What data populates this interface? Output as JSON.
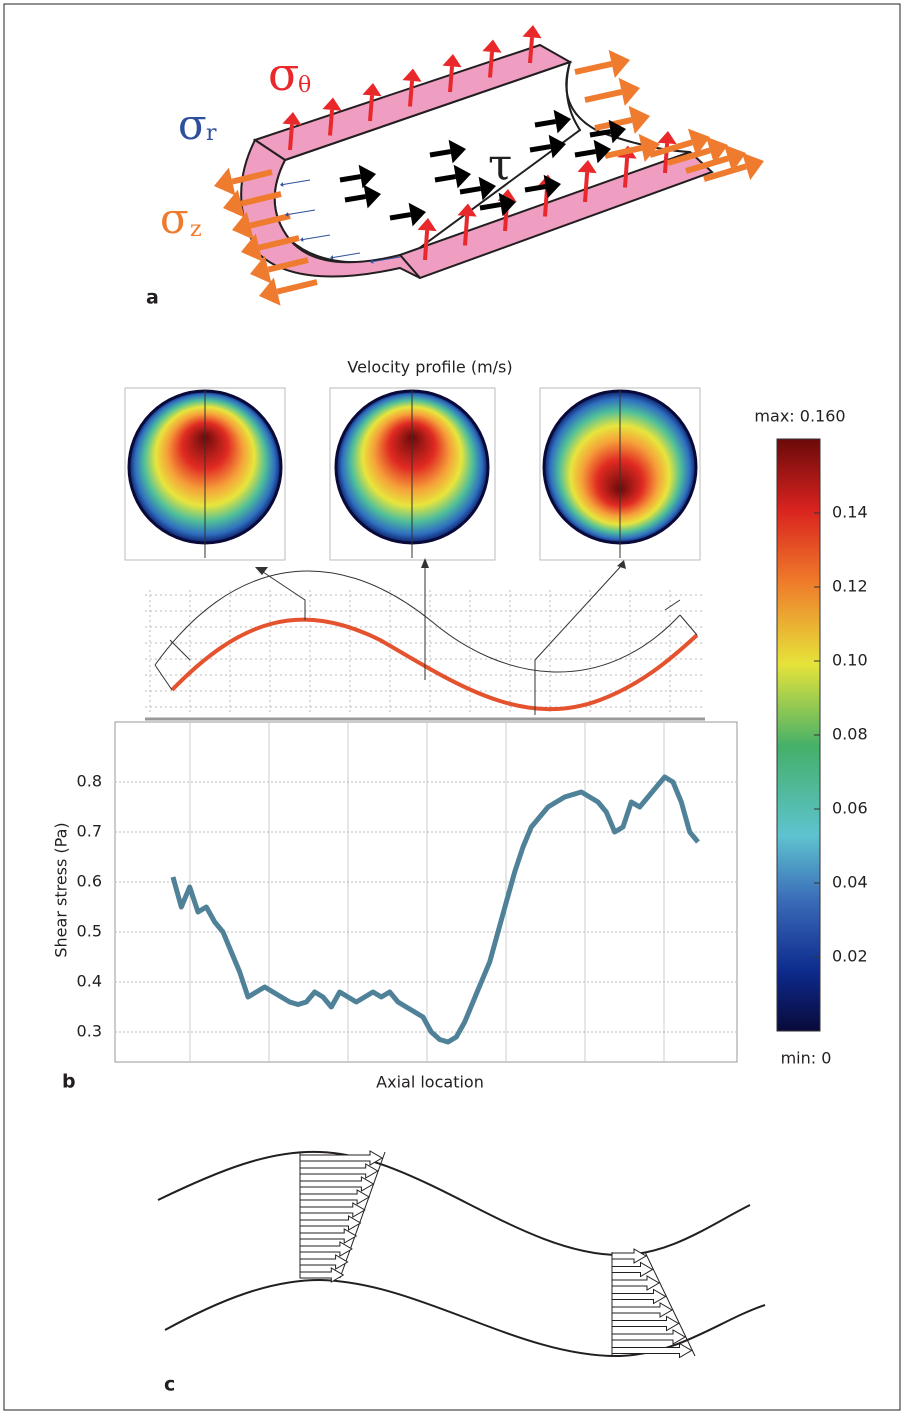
{
  "panel_a": {
    "label": "a",
    "sigma_theta": {
      "symbol": "σ",
      "sub": "θ"
    },
    "sigma_r": {
      "symbol": "σ",
      "sub": "r"
    },
    "sigma_z": {
      "symbol": "σ",
      "sub": "z"
    },
    "tau": "τ"
  },
  "panel_b": {
    "label": "b",
    "title": "Velocity profile (m/s)",
    "colorbar": {
      "clim": [
        0,
        0.16
      ],
      "ticks": [
        0.02,
        0.04,
        0.06,
        0.08,
        {
          "value": 0.1,
          "label": "0.10"
        },
        0.12,
        0.14
      ],
      "max_label": {
        "value": 0.16,
        "label": "max: 0.160"
      },
      "min_label": {
        "value": 0,
        "label": "min: 0"
      }
    }
  },
  "chart_data": {
    "type": "line",
    "xlabel": "Axial location",
    "ylabel": "Shear stress (Pa)",
    "color": "#4f8198",
    "values": [
      0.61,
      0.55,
      0.59,
      0.54,
      0.55,
      0.52,
      0.5,
      0.46,
      0.42,
      0.37,
      0.38,
      0.39,
      0.38,
      0.37,
      0.36,
      0.355,
      0.36,
      0.38,
      0.37,
      0.35,
      0.38,
      0.37,
      0.36,
      0.37,
      0.38,
      0.37,
      0.38,
      0.36,
      0.35,
      0.34,
      0.33,
      0.3,
      0.285,
      0.28,
      0.29,
      0.32,
      0.36,
      0.4,
      0.44,
      0.5,
      0.56,
      0.62,
      0.67,
      0.71,
      0.73,
      0.75,
      0.76,
      0.77,
      0.775,
      0.78,
      0.77,
      0.76,
      0.74,
      0.7,
      0.71,
      0.76,
      0.75,
      0.77,
      0.79,
      0.81,
      0.8,
      0.76,
      0.7,
      0.68
    ],
    "ylim": [
      0.24,
      0.92
    ],
    "yticks": [
      0.3,
      0.4,
      0.5,
      0.6,
      0.7,
      0.8
    ],
    "grid": true
  },
  "panel_c": {
    "label": "c"
  }
}
